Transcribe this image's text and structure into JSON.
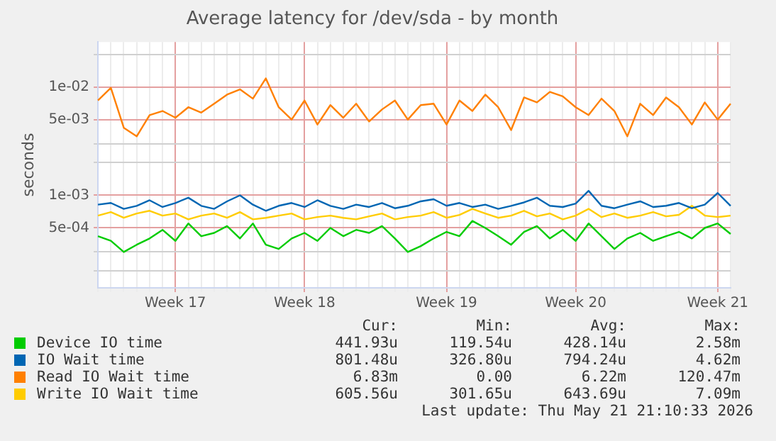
{
  "chart_data": {
    "type": "line",
    "title": "Average latency for /dev/sda - by month",
    "ylabel": "seconds",
    "log": "y",
    "grid": true,
    "legend": "bottom",
    "marker": "none",
    "line_style": "solid",
    "categories": [
      null,
      null,
      null,
      null,
      null,
      null,
      "Week 17",
      null,
      null,
      null,
      null,
      null,
      null,
      null,
      null,
      null,
      "Week 18",
      null,
      null,
      null,
      null,
      null,
      null,
      null,
      null,
      null,
      null,
      "Week 19",
      null,
      null,
      null,
      null,
      null,
      null,
      null,
      null,
      null,
      "Week 20",
      null,
      null,
      null,
      null,
      null,
      null,
      null,
      null,
      null,
      null,
      "Week 21",
      null
    ],
    "ylim": [
      0.00014,
      0.026
    ],
    "yticks": [
      {
        "value": 0.0002,
        "label": null
      },
      {
        "value": 0.0003,
        "label": null
      },
      {
        "value": 0.0005,
        "label": "5e-04"
      },
      {
        "value": 0.001,
        "label": "1e-03"
      },
      {
        "value": 0.002,
        "label": null
      },
      {
        "value": 0.003,
        "label": null
      },
      {
        "value": 0.005,
        "label": "5e-03"
      },
      {
        "value": 0.01,
        "label": "1e-02"
      },
      {
        "value": 0.02,
        "label": null
      }
    ],
    "series": [
      {
        "name": "Device IO time",
        "color": "#00cc00",
        "values": [
          0.00042,
          0.00038,
          0.0003,
          0.00035,
          0.0004,
          0.00048,
          0.00038,
          0.00055,
          0.00042,
          0.00045,
          0.00052,
          0.0004,
          0.00055,
          0.00035,
          0.00032,
          0.0004,
          0.00045,
          0.00038,
          0.0005,
          0.00042,
          0.00048,
          0.00045,
          0.00052,
          0.0004,
          0.0003,
          0.00034,
          0.0004,
          0.00046,
          0.00042,
          0.00058,
          0.0005,
          0.00042,
          0.00035,
          0.00046,
          0.00052,
          0.0004,
          0.00048,
          0.00038,
          0.00055,
          0.00042,
          0.00032,
          0.0004,
          0.00045,
          0.00038,
          0.00042,
          0.00046,
          0.0004,
          0.0005,
          0.00055,
          0.00044
        ]
      },
      {
        "name": "IO Wait time",
        "color": "#0066b3",
        "values": [
          0.00082,
          0.00085,
          0.00075,
          0.0008,
          0.0009,
          0.00078,
          0.00085,
          0.00095,
          0.0008,
          0.00075,
          0.00088,
          0.001,
          0.00082,
          0.00072,
          0.0008,
          0.00085,
          0.00078,
          0.0009,
          0.0008,
          0.00075,
          0.00082,
          0.00078,
          0.00085,
          0.00076,
          0.0008,
          0.00088,
          0.00092,
          0.0008,
          0.00085,
          0.00078,
          0.00082,
          0.00075,
          0.0008,
          0.00086,
          0.00095,
          0.0008,
          0.00078,
          0.00084,
          0.0011,
          0.0008,
          0.00076,
          0.00082,
          0.00088,
          0.00078,
          0.0008,
          0.00085,
          0.00076,
          0.00082,
          0.00105,
          0.0008
        ]
      },
      {
        "name": "Read IO Wait time",
        "color": "#ff8000",
        "values": [
          0.0075,
          0.0098,
          0.0042,
          0.0035,
          0.0055,
          0.006,
          0.0052,
          0.0065,
          0.0058,
          0.007,
          0.0085,
          0.0095,
          0.0078,
          0.012,
          0.0065,
          0.005,
          0.0075,
          0.0045,
          0.0068,
          0.0052,
          0.007,
          0.0048,
          0.0062,
          0.0075,
          0.005,
          0.0068,
          0.007,
          0.0045,
          0.0075,
          0.006,
          0.0085,
          0.0065,
          0.004,
          0.008,
          0.0072,
          0.009,
          0.0082,
          0.0065,
          0.0055,
          0.0078,
          0.006,
          0.0035,
          0.007,
          0.0055,
          0.008,
          0.0065,
          0.0045,
          0.0072,
          0.005,
          0.007
        ]
      },
      {
        "name": "Write IO Wait time",
        "color": "#ffcc00",
        "values": [
          0.00065,
          0.0007,
          0.00062,
          0.00068,
          0.00072,
          0.00065,
          0.00068,
          0.0006,
          0.00065,
          0.00068,
          0.00062,
          0.0007,
          0.0006,
          0.00062,
          0.00065,
          0.00068,
          0.0006,
          0.00063,
          0.00065,
          0.00062,
          0.0006,
          0.00064,
          0.00068,
          0.0006,
          0.00063,
          0.00065,
          0.0007,
          0.00062,
          0.00066,
          0.00075,
          0.00068,
          0.00062,
          0.00065,
          0.00072,
          0.00064,
          0.00068,
          0.0006,
          0.00065,
          0.00075,
          0.00063,
          0.00068,
          0.00062,
          0.00065,
          0.0007,
          0.00064,
          0.00066,
          0.0008,
          0.00065,
          0.00063,
          0.00065
        ]
      }
    ],
    "annotations": [
      "Cur:",
      "Min:",
      "Avg:",
      "Max:",
      "441.93u",
      "119.54u",
      "428.14u",
      "2.58m",
      "801.48u",
      "326.80u",
      "794.24u",
      "4.62m",
      "6.83m",
      "0.00",
      "6.22m",
      "120.47m",
      "605.56u",
      "301.65u",
      "643.69u",
      "7.09m",
      "Last update: Thu May 21 21:10:33 2026"
    ]
  }
}
